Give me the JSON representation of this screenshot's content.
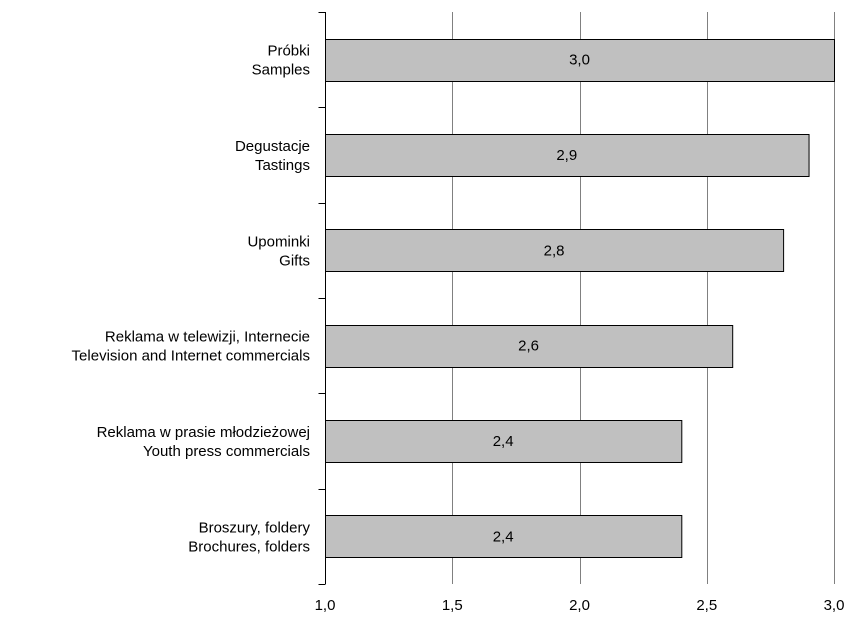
{
  "chart_data": {
    "type": "bar",
    "orientation": "horizontal",
    "categories": [
      [
        "Próbki",
        "Samples"
      ],
      [
        "Degustacje",
        "Tastings"
      ],
      [
        "Upominki",
        "Gifts"
      ],
      [
        "Reklama w telewizji, Internecie",
        "Television and Internet commercials"
      ],
      [
        "Reklama w prasie młodzieżowej",
        "Youth press commercials"
      ],
      [
        "Broszury, foldery",
        "Brochures, folders"
      ]
    ],
    "values": [
      3.0,
      2.9,
      2.8,
      2.6,
      2.4,
      2.4
    ],
    "data_labels": [
      "3,0",
      "2,9",
      "2,8",
      "2,6",
      "2,4",
      "2,4"
    ],
    "xlim": [
      1.0,
      3.0
    ],
    "x_ticks": [
      1.0,
      1.5,
      2.0,
      2.5,
      3.0
    ],
    "x_tick_labels": [
      "1,0",
      "1,5",
      "2,0",
      "2,5",
      "3,0"
    ],
    "grid": "vertical",
    "legend": "none",
    "bar_color": "#c0c0c0",
    "title": "",
    "xlabel": "",
    "ylabel": ""
  }
}
